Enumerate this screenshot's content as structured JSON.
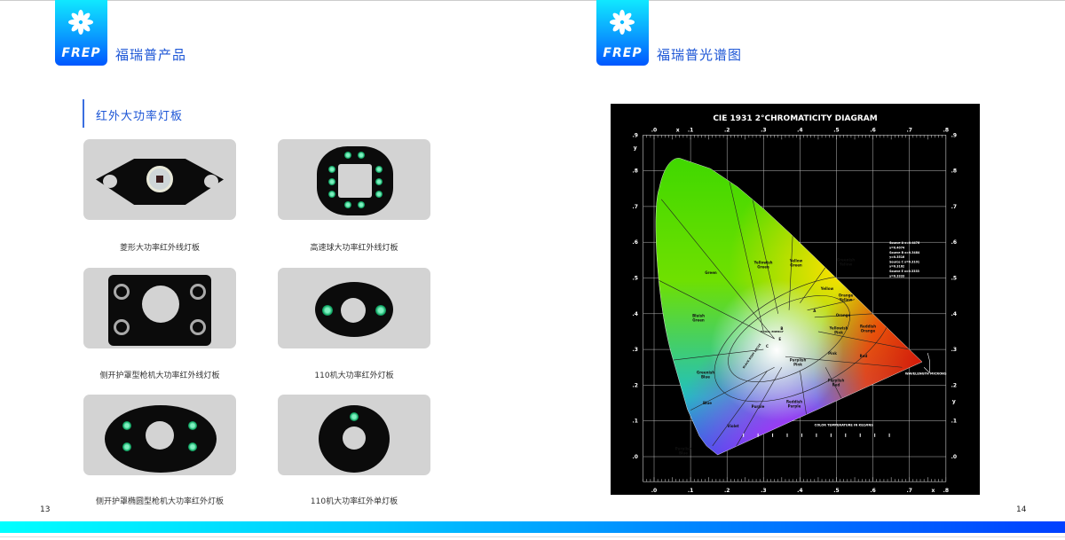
{
  "left_page": {
    "logo_text": "FREP",
    "title": "福瑞普产品",
    "section_title": "红外大功率灯板",
    "products": [
      {
        "caption": "菱形大功率红外线灯板"
      },
      {
        "caption": "高速球大功率红外线灯板"
      },
      {
        "caption": "侧开护罩型枪机大功率红外线灯板"
      },
      {
        "caption": "110机大功率红外灯板"
      },
      {
        "caption": "侧开护罩椭圆型枪机大功率红外灯板"
      },
      {
        "caption": "110机大功率红外单灯板"
      }
    ],
    "page_number": "13"
  },
  "right_page": {
    "logo_text": "FREP",
    "title": "福瑞普光谱图",
    "page_number": "14",
    "diagram": {
      "title": "CIE 1931 2°CHROMATICITY DIAGRAM",
      "x_axis_label": "x",
      "y_axis_label": "y",
      "x_ticks": [
        ".0",
        ".1",
        ".2",
        ".3",
        ".4",
        ".5",
        ".6",
        ".7",
        ".8"
      ],
      "y_ticks": [
        ".0",
        ".1",
        ".2",
        ".3",
        ".4",
        ".5",
        ".6",
        ".7",
        ".8",
        ".9"
      ],
      "regions": [
        "Green",
        "Yellowish Green",
        "Yellow Green",
        "Greenish Yellow",
        "Yellow",
        "Orange Yellow",
        "Orange",
        "Yellowish Pink",
        "Reddish Orange",
        "Pink",
        "Red",
        "Bluish Green",
        "Purplish Pink",
        "Greenish Blue",
        "Purplish Red",
        "Blue",
        "Reddish Purple",
        "Purple",
        "Violet",
        "Purplish Blue"
      ],
      "center_label": "EQUAL ENERGY",
      "locus_label": "BLACK BODY LOCUS",
      "illuminants": [
        "A",
        "B",
        "C",
        "E"
      ],
      "sources": [
        "Source A  x=0.4476",
        "y=0.4074",
        "Source B  x=0.3484",
        "y=0.3516",
        "Source C  x=0.3101",
        "y=0.3162",
        "Source E  x=0.3333",
        "y=0.3333"
      ],
      "color_temp_label": "COLOR TEMPERATURE IN KELVINS",
      "wavelength_label": "WAVELENGTH MICRONS"
    }
  }
}
